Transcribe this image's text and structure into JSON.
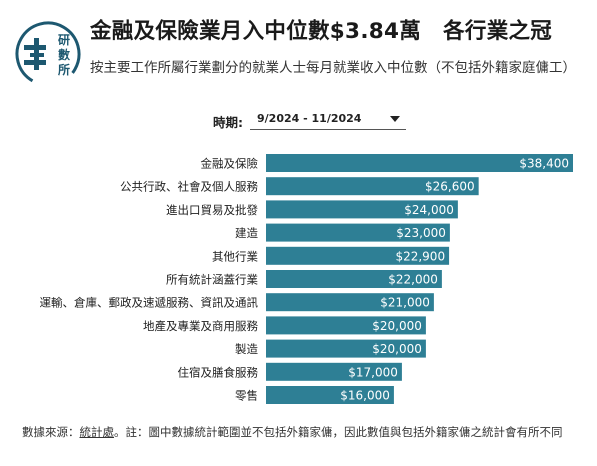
{
  "header": {
    "title_main": "金融及保險業月入中位數$3.84萬",
    "title_tag": "各行業之冠",
    "subtitle": "按主要工作所屬行業劃分的就業人士每月就業收入中位數（不包括外籍家庭傭工）",
    "logo_text": [
      "研",
      "數",
      "所"
    ]
  },
  "filter": {
    "label": "時期:",
    "value": "9/2024 - 11/2024"
  },
  "chart_data": {
    "type": "bar",
    "orientation": "horizontal",
    "categories": [
      "金融及保險",
      "公共行政、社會及個人服務",
      "進出口貿易及批發",
      "建造",
      "其他行業",
      "所有統計涵蓋行業",
      "運輸、倉庫、郵政及速遞服務、資訊及通訊",
      "地產及專業及商用服務",
      "製造",
      "住宿及膳食服務",
      "零售"
    ],
    "values": [
      38400,
      26600,
      24000,
      23000,
      22900,
      22000,
      21000,
      20000,
      20000,
      17000,
      16000
    ],
    "data_labels": [
      "$38,400",
      "$26,600",
      "$24,000",
      "$23,000",
      "$22,900",
      "$22,000",
      "$21,000",
      "$20,000",
      "$20,000",
      "$17,000",
      "$16,000"
    ],
    "xlim": [
      0,
      38400
    ],
    "bar_color": "#2e7f95",
    "grid": false,
    "legend": "none"
  },
  "footer": {
    "source_label": "數據來源：",
    "source_name": "統計處",
    "note": "。註：圖中數據統計範圍並不包括外籍家傭，因此數值與包括外籍家傭之統計會有所不同"
  }
}
